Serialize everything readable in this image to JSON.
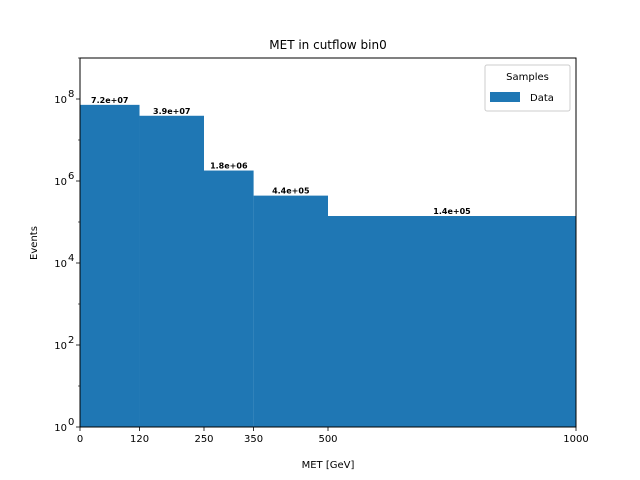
{
  "chart_data": {
    "type": "bar",
    "title": "MET in cutflow bin0",
    "xlabel": "MET [GeV]",
    "ylabel": "Events",
    "yscale": "log",
    "ylim": [
      1,
      1000000000.0
    ],
    "xlim": [
      0,
      1000
    ],
    "x_ticks": [
      "0",
      "120",
      "250",
      "350",
      "500",
      "1000"
    ],
    "y_ticks": [
      {
        "base": "10",
        "exp": "0"
      },
      {
        "base": "10",
        "exp": "2"
      },
      {
        "base": "10",
        "exp": "4"
      },
      {
        "base": "10",
        "exp": "6"
      },
      {
        "base": "10",
        "exp": "8"
      }
    ],
    "bin_edges": [
      0,
      120,
      250,
      350,
      500,
      1000
    ],
    "series": [
      {
        "name": "Data",
        "color": "#1f77b4",
        "values": [
          72000000,
          39000000,
          1800000,
          440000,
          140000
        ],
        "labels": [
          "7.2e+07",
          "3.9e+07",
          "1.8e+06",
          "4.4e+05",
          "1.4e+05"
        ]
      }
    ],
    "legend": {
      "title": "Samples",
      "placement": "top-right"
    },
    "grid": false
  }
}
